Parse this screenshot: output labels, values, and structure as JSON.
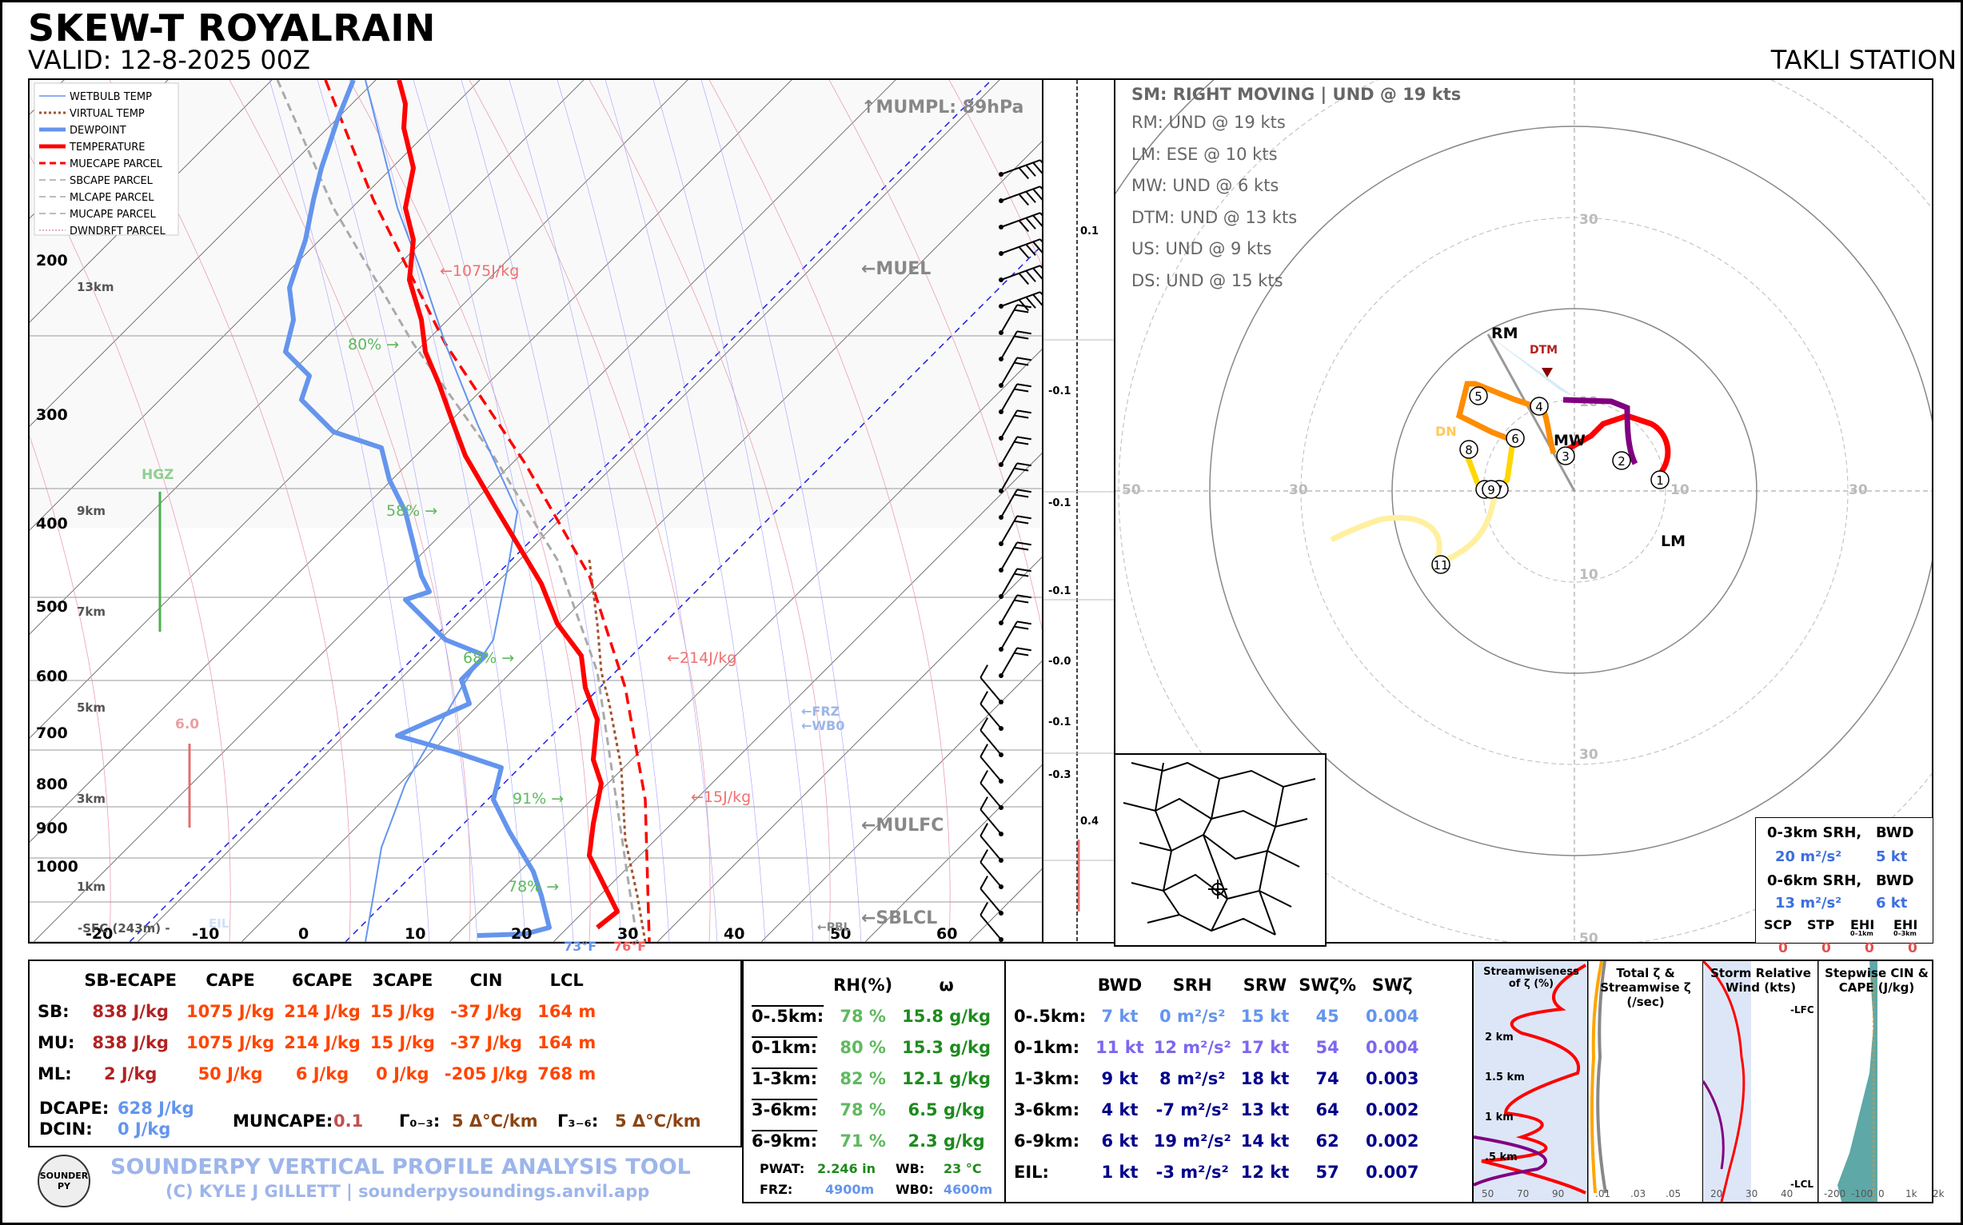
{
  "header": {
    "title": "SKEW-T ROYALRAIN",
    "valid": "VALID: 12-8-2025 00Z",
    "station": "TAKLI STATION"
  },
  "legend": [
    "WETBULB TEMP",
    "VIRTUAL TEMP",
    "DEWPOINT",
    "TEMPERATURE",
    "MUECAPE PARCEL",
    "SBCAPE PARCEL",
    "MLCAPE PARCEL",
    "MUCAPE PARCEL",
    "DWNDRFT PARCEL"
  ],
  "skewt_labels": {
    "mumpl": "↑MUMPL: 89hPa",
    "muel": "←MUEL",
    "mulfc": "←MULFC",
    "sblcl": "←SBLCL",
    "pbl": "←PBL",
    "frz": "←FRZ",
    "wb0": "←WB0",
    "hgz": "HGZ",
    "val60": "6.0",
    "eil": "EIL",
    "sfc": "-SFC (243m) -",
    "sfc_td": "73°F",
    "sfc_t": "76°F",
    "cape_1075": "←1075J/kg",
    "cape_214": "←214J/kg",
    "cape_15": "←15J/kg",
    "rh80": "80% →",
    "rh58": "58% →",
    "rh68": "68% →",
    "rh91": "91% →",
    "rh78": "78% →",
    "h13": "13km",
    "h9": "9km",
    "h7": "7km",
    "h5": "5km",
    "h3": "3km",
    "h1": "1km"
  },
  "omega_labels": [
    "0.1",
    "-0.1",
    "-0.1",
    "-0.1",
    "-0.0",
    "-0.1",
    "-0.3",
    "0.4"
  ],
  "chart_data": [
    {
      "type": "line",
      "title": "SKEW-T ROYALRAIN",
      "xlabel": "",
      "ylabel": "",
      "y_ticks_hpa": [
        200,
        300,
        400,
        500,
        600,
        700,
        800,
        900,
        1000
      ],
      "x_ticks_c": [
        -20,
        -10,
        0,
        10,
        20,
        30,
        40,
        50,
        60
      ],
      "series": [
        {
          "name": "TEMPERATURE",
          "color": "#ff0000",
          "points": [
            [
              1000,
              25
            ],
            [
              950,
              27
            ],
            [
              900,
              26
            ],
            [
              850,
              23
            ],
            [
              800,
              21
            ],
            [
              700,
              15
            ],
            [
              600,
              9
            ],
            [
              500,
              2
            ],
            [
              400,
              -10
            ],
            [
              300,
              -26
            ],
            [
              250,
              -35
            ],
            [
              200,
              -47
            ],
            [
              150,
              -58
            ],
            [
              100,
              -73
            ]
          ]
        },
        {
          "name": "DEWPOINT",
          "color": "#6495ed",
          "points": [
            [
              1000,
              23
            ],
            [
              950,
              21
            ],
            [
              900,
              20
            ],
            [
              850,
              19
            ],
            [
              800,
              18
            ],
            [
              700,
              12
            ],
            [
              600,
              3
            ],
            [
              550,
              -4
            ],
            [
              500,
              -9
            ],
            [
              400,
              -24
            ],
            [
              350,
              -35
            ],
            [
              300,
              -53
            ],
            [
              250,
              -50
            ],
            [
              200,
              -61
            ],
            [
              150,
              -78
            ],
            [
              100,
              -90
            ]
          ]
        }
      ]
    },
    {
      "type": "scatter",
      "title": "Hodograph",
      "rings_kt": [
        10,
        30,
        50
      ],
      "points_kt": [
        [
          5.5,
          1.5
        ],
        [
          4.5,
          3.5
        ],
        [
          -2,
          4.5
        ],
        [
          -1,
          6.5
        ],
        [
          -5,
          7
        ],
        [
          -3,
          4.5
        ],
        [
          -6,
          5.5
        ],
        [
          -7,
          3
        ],
        [
          -7.8,
          0.5
        ],
        [
          -6.5,
          0.5
        ],
        [
          -9,
          -5
        ]
      ],
      "point_labels": [
        "1",
        "2",
        "3",
        "4",
        "5",
        "6",
        "7",
        "8",
        "9",
        "9",
        "11"
      ],
      "markers": {
        "RM": "RM",
        "LM": "LM",
        "MW": "MW",
        "DTM": "DTM",
        "DN": "DN"
      }
    }
  ],
  "hodo_text": {
    "sm": "SM: RIGHT MOVING | UND @ 19 kts",
    "lines": [
      "RM: UND @ 19 kts",
      "LM: ESE @ 10 kts",
      "MW: UND @ 6 kts",
      "DTM: UND @ 13 kts",
      "US: UND @ 9 kts",
      "DS: UND @ 15 kts"
    ]
  },
  "srh_box": {
    "h1": "0-3km SRH,",
    "h1b": "BWD",
    "v1": "20 m²/s²",
    "v1b": "5 kt",
    "h2": "0-6km SRH,",
    "h2b": "BWD",
    "v2": "13 m²/s²",
    "v2b": "6 kt",
    "cols": [
      "SCP",
      "STP",
      "EHI",
      "EHI"
    ],
    "vals": [
      "0",
      "0",
      "0",
      "0"
    ],
    "sub": [
      "0–1km",
      "0–3km"
    ]
  },
  "thermo_table": {
    "headers": [
      "",
      "SB-ECAPE",
      "CAPE",
      "6CAPE",
      "3CAPE",
      "CIN",
      "LCL"
    ],
    "rows": [
      {
        "label": "SB:",
        "vals": [
          "838 J/kg",
          "1075 J/kg",
          "214 J/kg",
          "15 J/kg",
          "-37 J/kg",
          "164 m"
        ]
      },
      {
        "label": "MU:",
        "vals": [
          "838 J/kg",
          "1075 J/kg",
          "214 J/kg",
          "15 J/kg",
          "-37 J/kg",
          "164 m"
        ]
      },
      {
        "label": "ML:",
        "vals": [
          "2 J/kg",
          "50 J/kg",
          "6 J/kg",
          "0 J/kg",
          "-205 J/kg",
          "768 m"
        ]
      }
    ],
    "dcape_label": "DCAPE:",
    "dcape": "628 J/kg",
    "dcin_label": "DCIN:",
    "dcin": "0 J/kg",
    "muncape_label": "MUNCAPE:",
    "muncape": "0.1",
    "lr03_label": "Γ₀₋₃:",
    "lr03": "5 Δ°C/km",
    "lr36_label": "Γ₃₋₆:",
    "lr36": "5 Δ°C/km"
  },
  "moist_table": {
    "headers": [
      "",
      "RH(%)",
      "ω"
    ],
    "rows": [
      {
        "label": "0-.5km:",
        "rh": "78 %",
        "w": "15.8 g/kg"
      },
      {
        "label": "0-1km:",
        "rh": "80 %",
        "w": "15.3 g/kg"
      },
      {
        "label": "1-3km:",
        "rh": "82 %",
        "w": "12.1 g/kg"
      },
      {
        "label": "3-6km:",
        "rh": "78 %",
        "w": "6.5 g/kg"
      },
      {
        "label": "6-9km:",
        "rh": "71 %",
        "w": "2.3 g/kg"
      }
    ],
    "pwat_label": "PWAT:",
    "pwat": "2.246 in",
    "wb_label": "WB:",
    "wb": "23 °C",
    "frz_label": "FRZ:",
    "frz": "4900m",
    "wb0_label": "WB0:",
    "wb0": "4600m"
  },
  "kin_table": {
    "headers": [
      "",
      "BWD",
      "SRH",
      "SRW",
      "SWζ%",
      "SWζ"
    ],
    "rows": [
      {
        "label": "0-.5km:",
        "vals": [
          "7 kt",
          "0 m²/s²",
          "15 kt",
          "45",
          "0.004"
        ]
      },
      {
        "label": "0-1km:",
        "vals": [
          "11 kt",
          "12 m²/s²",
          "17 kt",
          "54",
          "0.004"
        ]
      },
      {
        "label": "1-3km:",
        "vals": [
          "9 kt",
          "8 m²/s²",
          "18 kt",
          "74",
          "0.003"
        ]
      },
      {
        "label": "3-6km:",
        "vals": [
          "4 kt",
          "-7 m²/s²",
          "13 kt",
          "64",
          "0.002"
        ]
      },
      {
        "label": "6-9km:",
        "vals": [
          "6 kt",
          "19 m²/s²",
          "14 kt",
          "62",
          "0.002"
        ]
      },
      {
        "label": "EIL:",
        "vals": [
          "1 kt",
          "-3 m²/s²",
          "12 kt",
          "57",
          "0.007"
        ]
      }
    ]
  },
  "mini_panels": {
    "p1": "Streamwiseness of ζ (%)",
    "p2": "Total ζ & Streamwise ζ (/sec)",
    "p3": "Storm Relative Wind (kts)",
    "p4": "Stepwise CIN & CAPE (J/kg)",
    "h2km": "2 km",
    "h15km": "1.5 km",
    "h1km": "1 km",
    "h05km": ".5 km",
    "lfc": "-LFC",
    "lcl": "-LCL",
    "ax1": [
      "50",
      "70",
      "90"
    ],
    "ax2": [
      ".01",
      ".03",
      ".05"
    ],
    "ax3": [
      "20",
      "30",
      "40"
    ],
    "ax4": [
      "-200",
      "-100",
      "0",
      "1k",
      "2k"
    ]
  },
  "footer": {
    "logo": "SOUNDER PY",
    "title": "SOUNDERPY VERTICAL PROFILE ANALYSIS TOOL",
    "credit": "(C) KYLE J GILLETT | sounderpysoundings.anvil.app"
  }
}
